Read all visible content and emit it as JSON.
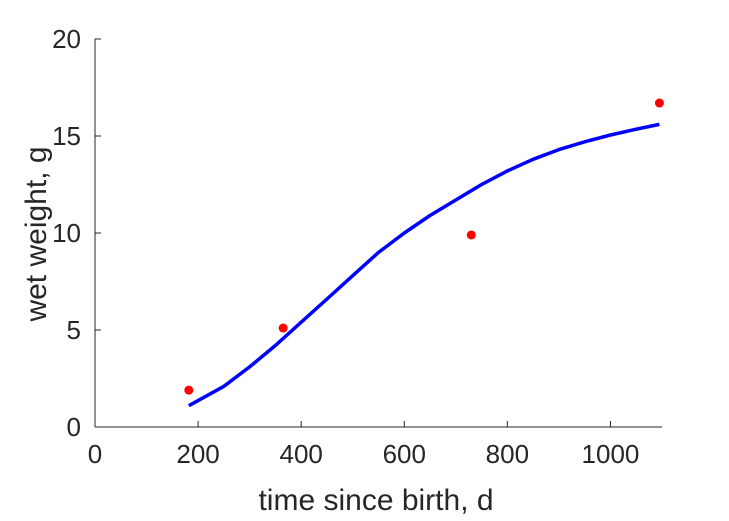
{
  "chart_data": {
    "type": "scatter",
    "xlabel": "time since birth, d",
    "ylabel": "wet weight, g",
    "xlim": [
      0,
      1100
    ],
    "ylim": [
      0,
      20
    ],
    "xticks": [
      0,
      200,
      400,
      600,
      800,
      1000
    ],
    "yticks": [
      0,
      5,
      10,
      15,
      20
    ],
    "grid": false,
    "series": [
      {
        "kind": "points",
        "color": "#ff0000",
        "x": [
          182,
          365,
          730,
          1095
        ],
        "y": [
          1.9,
          5.1,
          9.9,
          16.7
        ]
      },
      {
        "kind": "line",
        "color": "#0000ff",
        "x": [
          182,
          250,
          300,
          350,
          400,
          450,
          500,
          550,
          600,
          650,
          700,
          750,
          800,
          850,
          900,
          950,
          1000,
          1050,
          1095
        ],
        "y": [
          1.1,
          2.1,
          3.1,
          4.2,
          5.4,
          6.6,
          7.8,
          9.0,
          10.0,
          10.9,
          11.7,
          12.5,
          13.2,
          13.8,
          14.3,
          14.7,
          15.05,
          15.35,
          15.6
        ]
      }
    ]
  }
}
